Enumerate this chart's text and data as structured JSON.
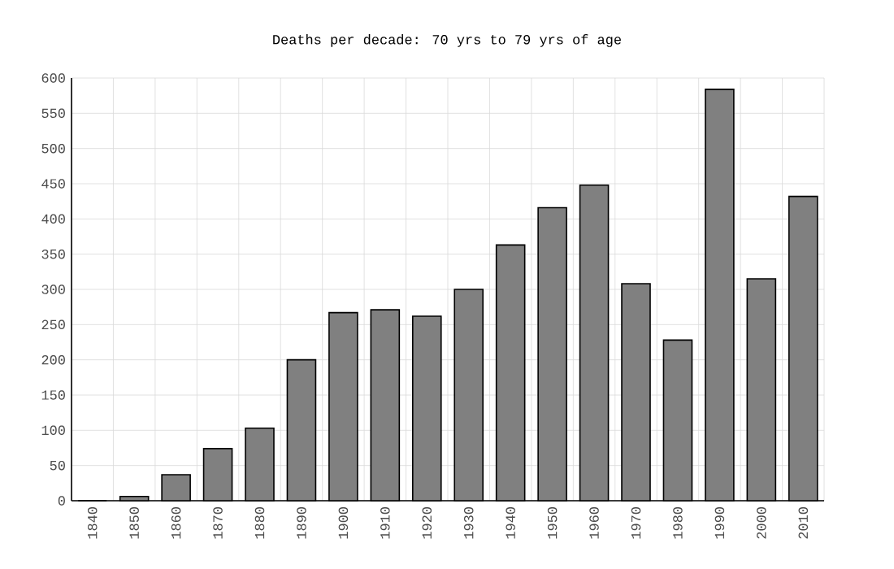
{
  "chart_data": {
    "type": "bar",
    "title": "Deaths per decade: 70 yrs to 79 yrs of age",
    "categories": [
      "1840",
      "1850",
      "1860",
      "1870",
      "1880",
      "1890",
      "1900",
      "1910",
      "1920",
      "1930",
      "1940",
      "1950",
      "1960",
      "1970",
      "1980",
      "1990",
      "2000",
      "2010"
    ],
    "values": [
      0,
      6,
      37,
      74,
      103,
      200,
      267,
      271,
      262,
      300,
      363,
      416,
      448,
      308,
      228,
      584,
      315,
      432
    ],
    "color": "#808080",
    "ylim": [
      0,
      600
    ],
    "yticks": [
      0,
      50,
      100,
      150,
      200,
      250,
      300,
      350,
      400,
      450,
      500,
      550,
      600
    ],
    "grid": true
  }
}
